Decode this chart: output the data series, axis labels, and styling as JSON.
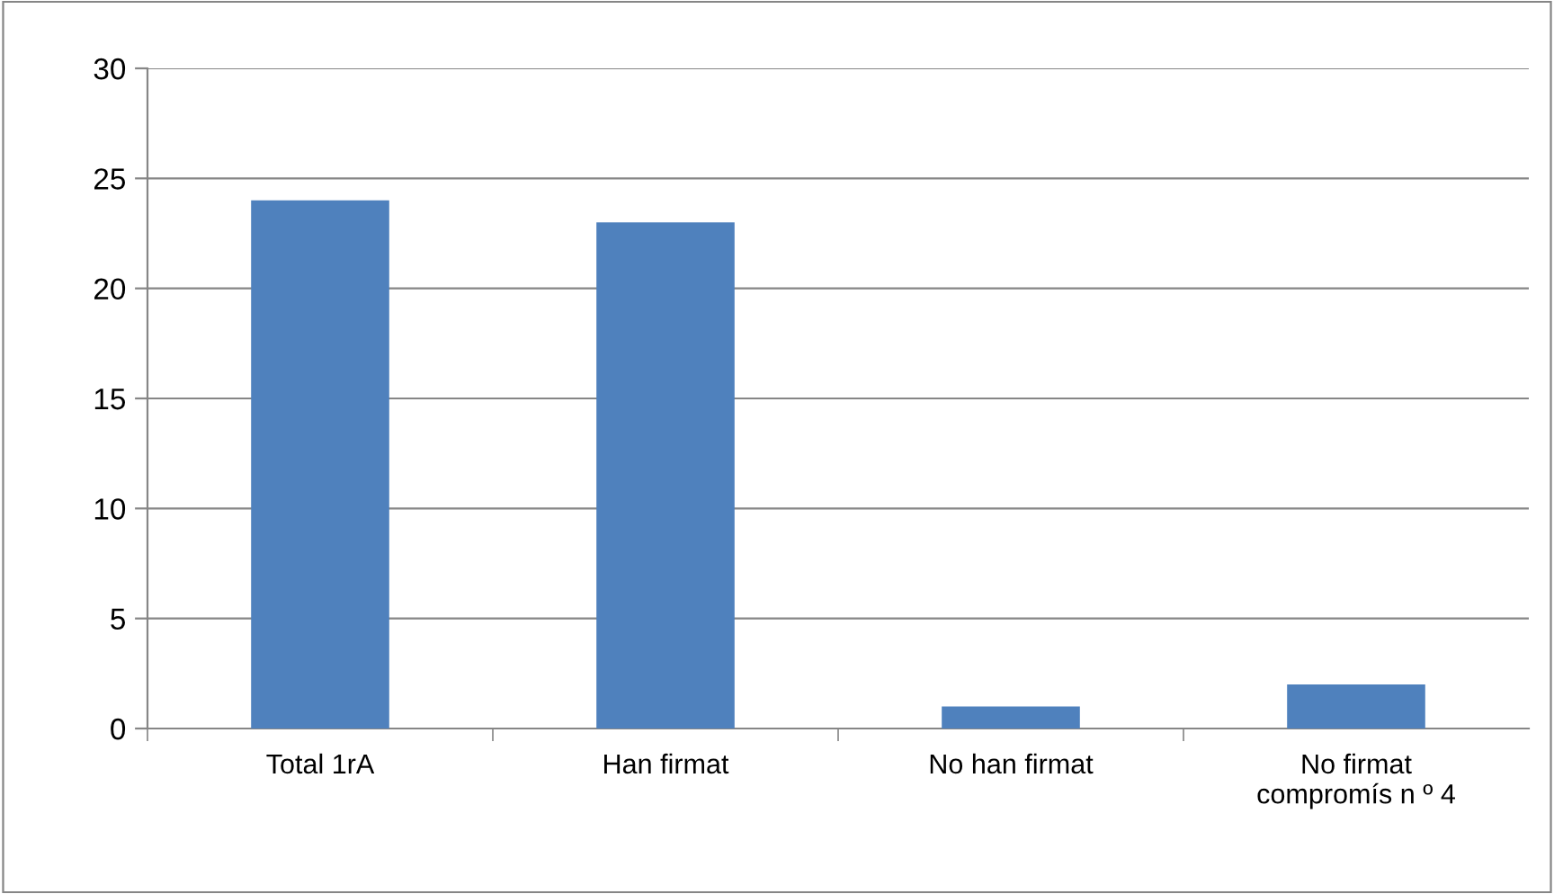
{
  "chart_data": {
    "type": "bar",
    "categories": [
      "Total 1rA",
      "Han firmat",
      "No han firmat",
      "No firmat\ncompromís n º 4"
    ],
    "values": [
      24,
      23,
      1,
      2
    ],
    "color": "#4f81bd",
    "ylim": [
      0,
      30
    ],
    "yticks": [
      0,
      5,
      10,
      15,
      20,
      25,
      30
    ],
    "grid": "y",
    "legend": false
  }
}
